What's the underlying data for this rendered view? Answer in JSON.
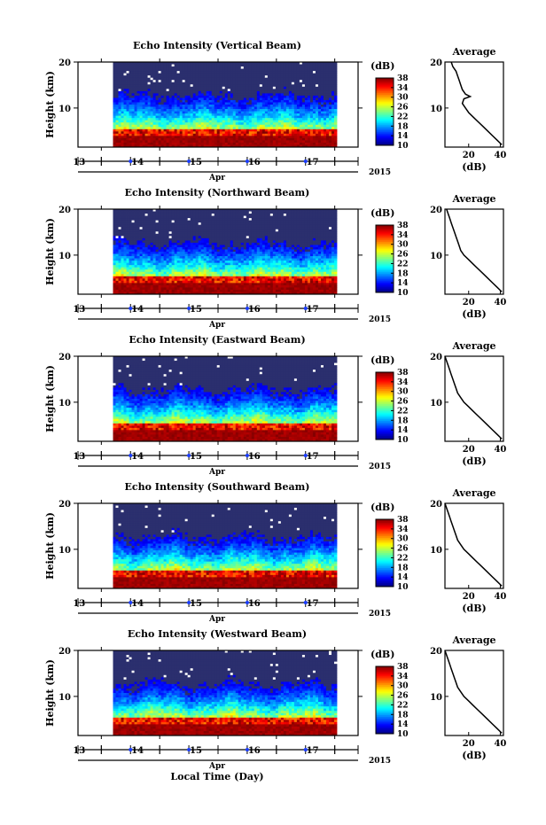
{
  "figure": {
    "xlabel": "Local Time (Day)",
    "month_label": "Apr",
    "year_label": "2015",
    "day_ticks": [
      "13",
      "14",
      "15",
      "16",
      "17"
    ],
    "colors": {
      "background": "#2b2f6e",
      "blank": "#ffffff",
      "axis": "#000000",
      "marker": "#1a3cff"
    }
  },
  "chart_data": [
    {
      "type": "heatmap",
      "title": "Echo Intensity (Vertical Beam)",
      "ylabel": "Height (km)",
      "y_ticks": [
        "20",
        "10"
      ],
      "ylim": [
        1.5,
        20
      ],
      "xlim": [
        12.6,
        17.4
      ],
      "data_start_day": 13.2,
      "colorbar": {
        "label": "(dB)",
        "ticks": [
          "38",
          "34",
          "30",
          "26",
          "22",
          "18",
          "14",
          "10"
        ],
        "range": [
          10,
          38
        ]
      },
      "average_profile": {
        "title": "Average",
        "xlabel": "(dB)",
        "x_ticks": [
          "20",
          "40"
        ],
        "y_ticks": [
          "20",
          "10"
        ],
        "xlim": [
          5,
          42
        ],
        "ylim": [
          1.5,
          20
        ],
        "heights": [
          20,
          19,
          18,
          17,
          16,
          15,
          14,
          13,
          12.5,
          12,
          11,
          10,
          9,
          8,
          7,
          6,
          5,
          4,
          3,
          2
        ],
        "db": [
          9,
          10,
          12,
          13,
          14,
          15,
          16,
          18,
          21,
          17,
          16,
          18,
          20,
          23,
          26,
          29,
          32,
          35,
          38,
          41
        ]
      }
    },
    {
      "type": "heatmap",
      "title": "Echo Intensity (Northward Beam)",
      "ylabel": "Height (km)",
      "y_ticks": [
        "20",
        "10"
      ],
      "ylim": [
        1.5,
        20
      ],
      "xlim": [
        12.6,
        17.4
      ],
      "data_start_day": 13.2,
      "colorbar": {
        "label": "(dB)",
        "ticks": [
          "38",
          "34",
          "30",
          "26",
          "22",
          "18",
          "14",
          "10"
        ],
        "range": [
          10,
          38
        ]
      },
      "average_profile": {
        "title": "Average",
        "xlabel": "(dB)",
        "x_ticks": [
          "20",
          "40"
        ],
        "y_ticks": [
          "20",
          "10"
        ],
        "xlim": [
          5,
          42
        ],
        "ylim": [
          1.5,
          20
        ],
        "heights": [
          20,
          19,
          18,
          17,
          16,
          15,
          14,
          13,
          12,
          11,
          10,
          9,
          8,
          7,
          6,
          5,
          4,
          3,
          2
        ],
        "db": [
          6,
          7,
          8,
          9,
          10,
          11,
          12,
          13,
          14,
          15,
          17,
          20,
          23,
          26,
          29,
          32,
          35,
          38,
          41
        ]
      }
    },
    {
      "type": "heatmap",
      "title": "Echo Intensity (Eastward Beam)",
      "ylabel": "Height (km)",
      "y_ticks": [
        "20",
        "10"
      ],
      "ylim": [
        1.5,
        20
      ],
      "xlim": [
        12.6,
        17.4
      ],
      "data_start_day": 13.2,
      "colorbar": {
        "label": "(dB)",
        "ticks": [
          "38",
          "34",
          "30",
          "26",
          "22",
          "18",
          "14",
          "10"
        ],
        "range": [
          10,
          38
        ]
      },
      "average_profile": {
        "title": "Average",
        "xlabel": "(dB)",
        "x_ticks": [
          "20",
          "40"
        ],
        "y_ticks": [
          "20",
          "10"
        ],
        "xlim": [
          5,
          42
        ],
        "ylim": [
          1.5,
          20
        ],
        "heights": [
          20,
          19,
          18,
          17,
          16,
          15,
          14,
          13,
          12,
          11,
          10,
          9,
          8,
          7,
          6,
          5,
          4,
          3,
          2
        ],
        "db": [
          5,
          6,
          7,
          8,
          9,
          10,
          11,
          12,
          13,
          15,
          17,
          20,
          23,
          26,
          29,
          32,
          35,
          38,
          41
        ]
      }
    },
    {
      "type": "heatmap",
      "title": "Echo Intensity (Southward Beam)",
      "ylabel": "Height (km)",
      "y_ticks": [
        "20",
        "10"
      ],
      "ylim": [
        1.5,
        20
      ],
      "xlim": [
        12.6,
        17.4
      ],
      "data_start_day": 13.2,
      "colorbar": {
        "label": "(dB)",
        "ticks": [
          "38",
          "34",
          "30",
          "26",
          "22",
          "18",
          "14",
          "10"
        ],
        "range": [
          10,
          38
        ]
      },
      "average_profile": {
        "title": "Average",
        "xlabel": "(dB)",
        "x_ticks": [
          "20",
          "40"
        ],
        "y_ticks": [
          "20",
          "10"
        ],
        "xlim": [
          5,
          42
        ],
        "ylim": [
          1.5,
          20
        ],
        "heights": [
          20,
          19,
          18,
          17,
          16,
          15,
          14,
          13,
          12,
          11,
          10,
          9,
          8,
          7,
          6,
          5,
          4,
          3,
          2
        ],
        "db": [
          5,
          6,
          7,
          8,
          9,
          10,
          11,
          12,
          13,
          15,
          17,
          20,
          23,
          26,
          29,
          32,
          35,
          38,
          41
        ]
      }
    },
    {
      "type": "heatmap",
      "title": "Echo Intensity (Westward Beam)",
      "ylabel": "Height (km)",
      "y_ticks": [
        "20",
        "10"
      ],
      "ylim": [
        1.5,
        20
      ],
      "xlim": [
        12.6,
        17.4
      ],
      "data_start_day": 13.2,
      "colorbar": {
        "label": "(dB)",
        "ticks": [
          "38",
          "34",
          "30",
          "26",
          "22",
          "18",
          "14",
          "10"
        ],
        "range": [
          10,
          38
        ]
      },
      "average_profile": {
        "title": "Average",
        "xlabel": "(dB)",
        "x_ticks": [
          "20",
          "40"
        ],
        "y_ticks": [
          "20",
          "10"
        ],
        "xlim": [
          5,
          42
        ],
        "ylim": [
          1.5,
          20
        ],
        "heights": [
          20,
          19,
          18,
          17,
          16,
          15,
          14,
          13,
          12,
          11,
          10,
          9,
          8,
          7,
          6,
          5,
          4,
          3,
          2
        ],
        "db": [
          5,
          6,
          7,
          8,
          9,
          10,
          11,
          12,
          13,
          15,
          17,
          20,
          23,
          26,
          29,
          32,
          35,
          38,
          41
        ]
      }
    }
  ]
}
